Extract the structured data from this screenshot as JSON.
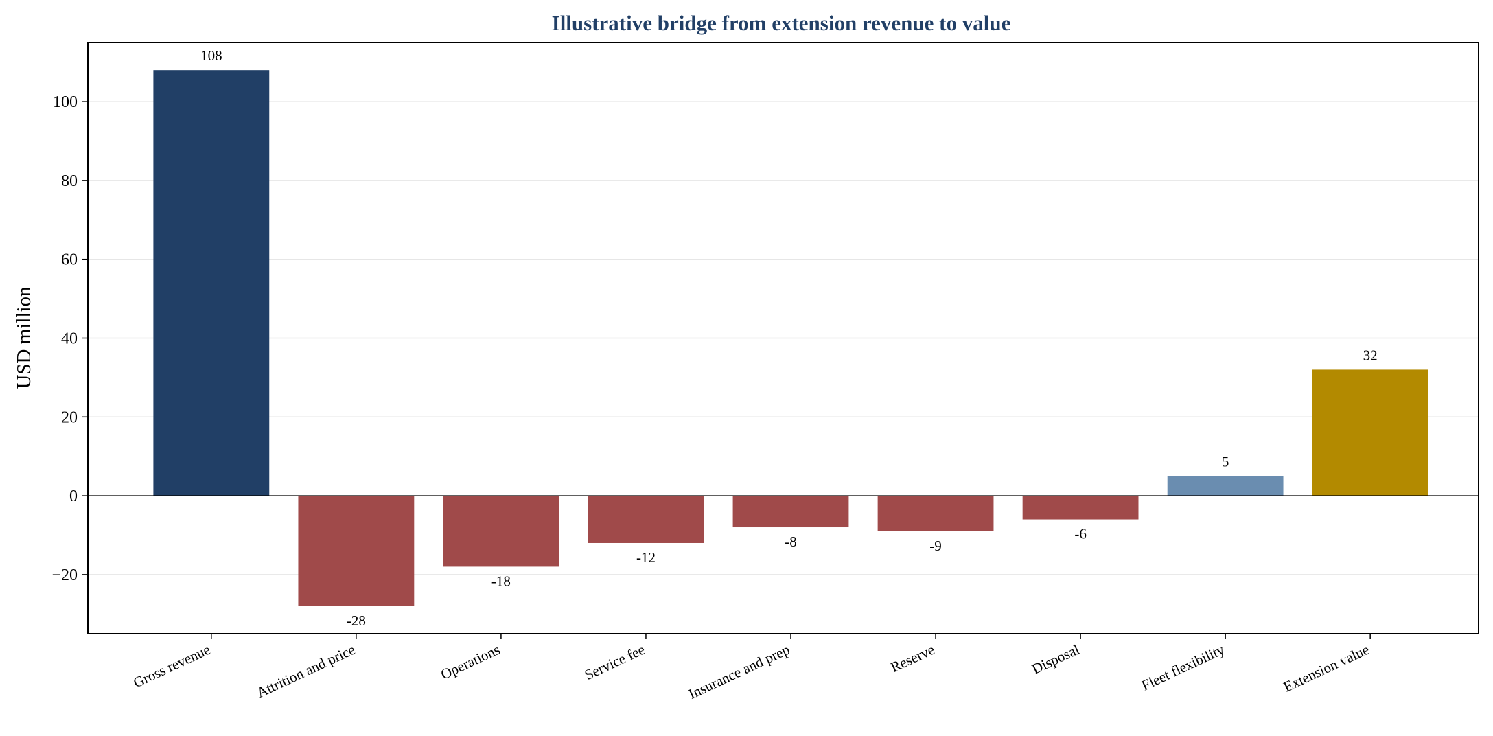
{
  "chart_data": {
    "type": "bar",
    "title": "Illustrative bridge from extension revenue to value",
    "xlabel": "",
    "ylabel": "USD million",
    "ylim": [
      -35,
      115
    ],
    "yticks": [
      -20,
      0,
      20,
      40,
      60,
      80,
      100
    ],
    "ytick_labels": [
      "−20",
      "0",
      "20",
      "40",
      "60",
      "80",
      "100"
    ],
    "grid": "horizontal",
    "categories": [
      "Gross revenue",
      "Attrition and price",
      "Operations",
      "Service fee",
      "Insurance and prep",
      "Reserve",
      "Disposal",
      "Fleet flexibility",
      "Extension value"
    ],
    "values": [
      108,
      -28,
      -18,
      -12,
      -8,
      -9,
      -6,
      5,
      32
    ],
    "data_labels": [
      "108",
      "-28",
      "-18",
      "-12",
      "-8",
      "-9",
      "-6",
      "5",
      "32"
    ],
    "colors": [
      "#213f66",
      "#a04a4a",
      "#a04a4a",
      "#a04a4a",
      "#a04a4a",
      "#a04a4a",
      "#a04a4a",
      "#6a8db0",
      "#b38a00"
    ],
    "title_color": "#213f66"
  }
}
